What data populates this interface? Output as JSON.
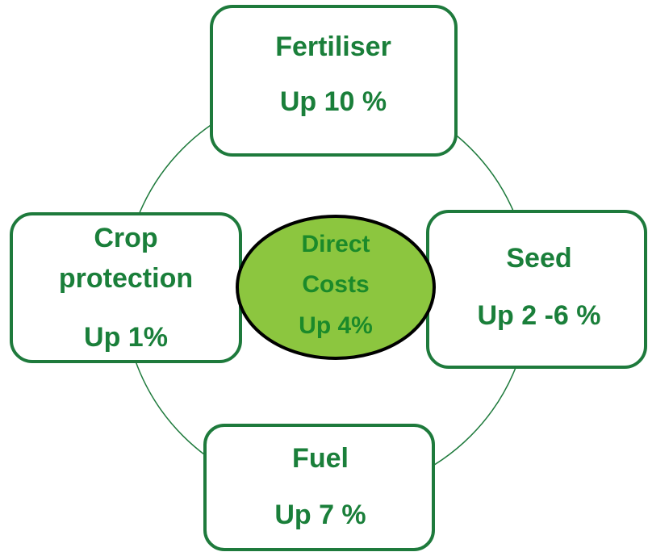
{
  "center": {
    "lines": [
      "Direct",
      "Costs",
      "Up 4%"
    ]
  },
  "nodes": [
    {
      "lines": [
        "Fertiliser",
        "Up 10 %"
      ]
    },
    {
      "lines": [
        "Crop",
        "protection",
        "Up 1%"
      ]
    },
    {
      "lines": [
        "Seed",
        "Up 2 -6 %"
      ]
    },
    {
      "lines": [
        "Fuel",
        "Up 7 %"
      ]
    }
  ]
}
